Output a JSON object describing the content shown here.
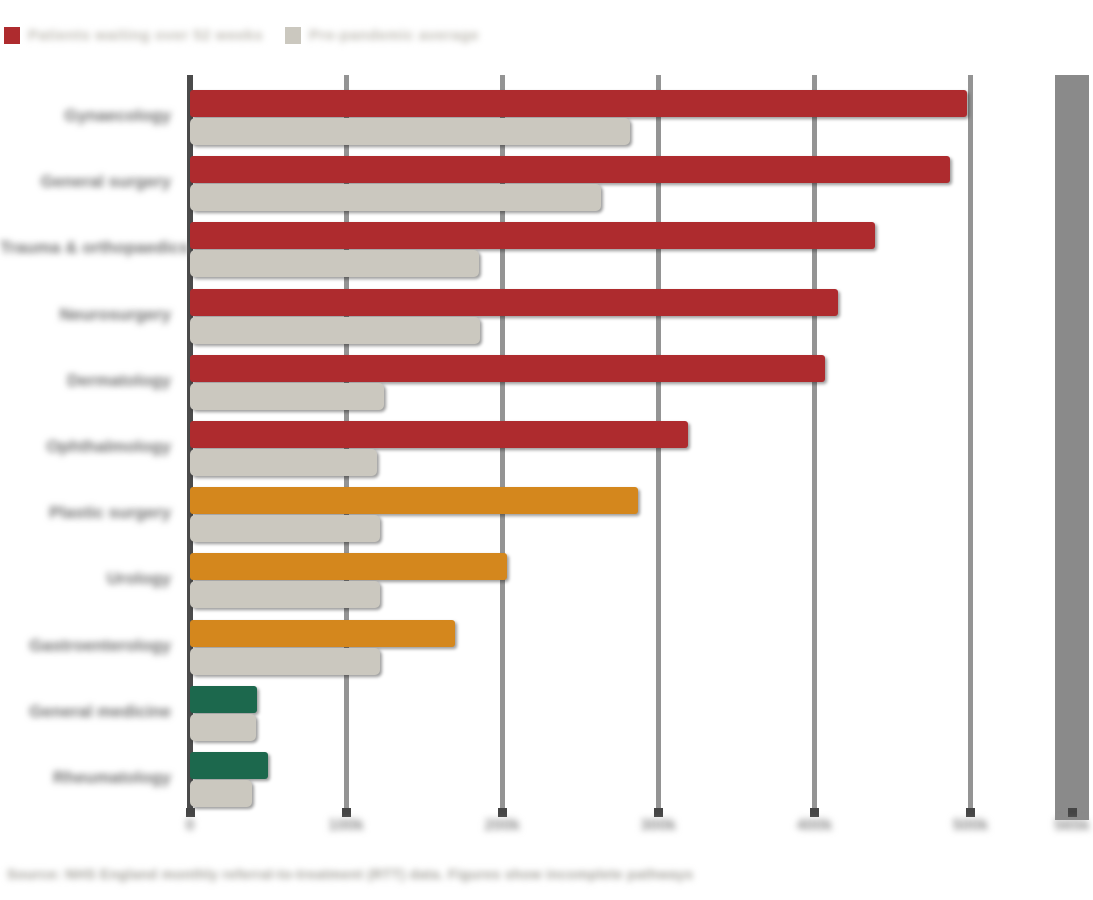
{
  "legend": {
    "items": [
      {
        "label": "Patients waiting over 52 weeks",
        "color": "#AE2B2E"
      },
      {
        "label": "Pre-pandemic average",
        "color": "#CBC8BF"
      }
    ]
  },
  "chart_data": {
    "type": "bar",
    "orientation": "horizontal",
    "title": "",
    "xlabel": "",
    "ylabel": "",
    "grid": "vertical-gridlines",
    "legend_position": "top-left",
    "xlim": [
      0,
      565
    ],
    "xticks": [
      {
        "value": 0,
        "label": "0"
      },
      {
        "value": 100,
        "label": "100k"
      },
      {
        "value": 200,
        "label": "200k"
      },
      {
        "value": 300,
        "label": "300k"
      },
      {
        "value": 400,
        "label": "400k"
      },
      {
        "value": 500,
        "label": "500k"
      }
    ],
    "axis_band": {
      "value": 565,
      "label": "565k"
    },
    "categories": [
      "Gynaecology",
      "General surgery",
      "Trauma & orthopaedics",
      "Neurosurgery",
      "Dermatology",
      "Ophthalmology",
      "Plastic surgery",
      "Urology",
      "Gastroenterology",
      "General medicine",
      "Rheumatology"
    ],
    "bar_colors": [
      "#AE2B2E",
      "#AE2B2E",
      "#AE2B2E",
      "#AE2B2E",
      "#AE2B2E",
      "#AE2B2E",
      "#D4871D",
      "#D4871D",
      "#D4871D",
      "#1C684D",
      "#1C684D"
    ],
    "series": [
      {
        "name": "Patients waiting over 52 weeks",
        "values": [
          498,
          487,
          439,
          415,
          407,
          319,
          287,
          203,
          170,
          43,
          50
        ]
      },
      {
        "name": "Pre-pandemic average",
        "color": "#CBC8BF",
        "values": [
          282,
          263,
          185,
          186,
          124,
          120,
          122,
          122,
          122,
          42,
          40
        ]
      }
    ],
    "footnote": "Source: NHS England monthly referral-to-treatment (RTT) data. Figures show incomplete pathways"
  },
  "colors": {
    "background": "#FFFFFF",
    "red": "#AE2B2E",
    "orange": "#D4871D",
    "green": "#1C684D",
    "compare_gray": "#CBC8BF",
    "axis": "#4B4B4B",
    "gridline": "#949494",
    "axis_band": "#8A8A8A",
    "category_label": "#6F6F6F",
    "tick_label": "#8D8D8D",
    "footnote": "#A09E97"
  }
}
